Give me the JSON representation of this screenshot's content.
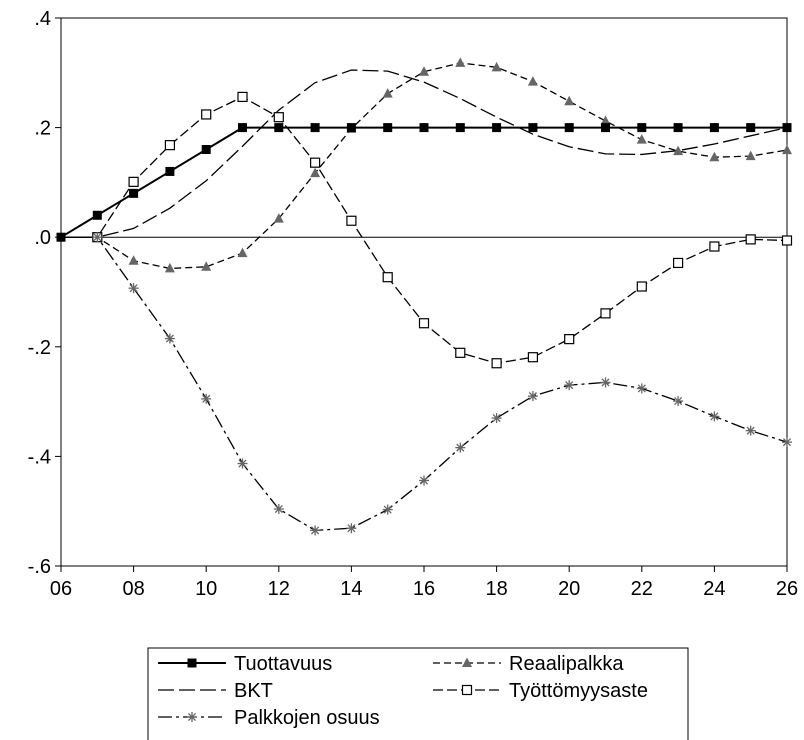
{
  "chart_data": {
    "type": "line",
    "title": "",
    "xlabel": "",
    "ylabel": "",
    "x": [
      6,
      7,
      8,
      9,
      10,
      11,
      12,
      13,
      14,
      15,
      16,
      17,
      18,
      19,
      20,
      21,
      22,
      23,
      24,
      25,
      26
    ],
    "xlim": [
      6,
      26
    ],
    "ylim": [
      -0.6,
      0.4
    ],
    "x_ticks": [
      6,
      8,
      10,
      12,
      14,
      16,
      18,
      20,
      22,
      24,
      26
    ],
    "x_tick_labels": [
      "06",
      "08",
      "10",
      "12",
      "14",
      "16",
      "18",
      "20",
      "22",
      "24",
      "26"
    ],
    "y_ticks": [
      0.4,
      0.2,
      0.0,
      -0.2,
      -0.4,
      -0.6
    ],
    "y_tick_labels": [
      ".4",
      ".2",
      ".0",
      "-.2",
      "-.4",
      "-.6"
    ],
    "zero_line": true,
    "grid": false,
    "legend_position": "bottom",
    "series": [
      {
        "name": "Tuottavuus",
        "style": "solid",
        "marker": "filled-square",
        "color": "#000000",
        "values": [
          0.0,
          0.04,
          0.08,
          0.12,
          0.16,
          0.2,
          0.2,
          0.2,
          0.2,
          0.2,
          0.2,
          0.2,
          0.2,
          0.2,
          0.2,
          0.2,
          0.2,
          0.2,
          0.2,
          0.2,
          0.2
        ]
      },
      {
        "name": "Reaalipalkka",
        "style": "short-dash",
        "marker": "filled-triangle",
        "color": "#000000",
        "marker_color": "#666666",
        "values": [
          0.0,
          0.0,
          -0.043,
          -0.057,
          -0.054,
          -0.029,
          0.034,
          0.117,
          0.198,
          0.262,
          0.302,
          0.318,
          0.31,
          0.284,
          0.248,
          0.212,
          0.178,
          0.157,
          0.146,
          0.148,
          0.159
        ]
      },
      {
        "name": "BKT",
        "style": "long-dash",
        "marker": "none",
        "color": "#000000",
        "values": [
          0.0,
          0.0,
          0.016,
          0.053,
          0.103,
          0.166,
          0.232,
          0.282,
          0.305,
          0.303,
          0.283,
          0.253,
          0.219,
          0.188,
          0.165,
          0.152,
          0.151,
          0.158,
          0.17,
          0.185,
          0.2
        ]
      },
      {
        "name": "Työttömyysaste",
        "style": "dash",
        "marker": "open-square",
        "color": "#000000",
        "values": [
          0.0,
          0.0,
          0.101,
          0.168,
          0.224,
          0.256,
          0.219,
          0.136,
          0.03,
          -0.073,
          -0.157,
          -0.211,
          -0.23,
          -0.219,
          -0.186,
          -0.139,
          -0.09,
          -0.047,
          -0.017,
          -0.004,
          -0.006
        ]
      },
      {
        "name": "Palkkojen osuus",
        "style": "dash-dot",
        "marker": "star",
        "color": "#000000",
        "marker_color": "#666666",
        "values": [
          0.0,
          0.0,
          -0.093,
          -0.185,
          -0.295,
          -0.413,
          -0.496,
          -0.535,
          -0.531,
          -0.497,
          -0.444,
          -0.384,
          -0.33,
          -0.29,
          -0.27,
          -0.265,
          -0.276,
          -0.299,
          -0.327,
          -0.353,
          -0.374
        ]
      }
    ]
  }
}
